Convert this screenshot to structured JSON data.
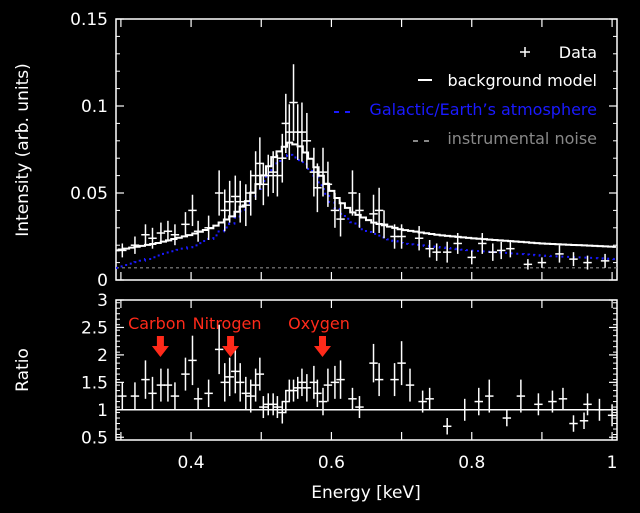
{
  "chart_data": [
    {
      "type": "scatter",
      "panel": "top",
      "ylabel": "Intensity (arb. units)",
      "xlim": [
        0.293,
        1.007
      ],
      "ylim": [
        0,
        0.15
      ],
      "yticks": [
        0,
        0.05,
        0.1,
        0.15
      ],
      "ytick_labels": [
        "0",
        "0.05",
        "0.1",
        "0.15"
      ],
      "legend": {
        "placement": "top-right",
        "entries": [
          {
            "marker": "+",
            "label": "Data",
            "color": "#ffffff"
          },
          {
            "marker": "—",
            "label": "background model",
            "color": "#ffffff"
          },
          {
            "marker": "- -",
            "label": "Galactic/Earth’s atmosphere",
            "color": "#1a1aff"
          },
          {
            "marker": "- -",
            "label": "instrumental noise",
            "color": "#888888"
          }
        ]
      },
      "x_halfwidth": 0.006,
      "points": [
        [
          0.302,
          0.017,
          0.004
        ],
        [
          0.32,
          0.02,
          0.005
        ],
        [
          0.335,
          0.026,
          0.006
        ],
        [
          0.345,
          0.024,
          0.006
        ],
        [
          0.357,
          0.027,
          0.006
        ],
        [
          0.367,
          0.028,
          0.006
        ],
        [
          0.377,
          0.026,
          0.006
        ],
        [
          0.392,
          0.032,
          0.007
        ],
        [
          0.402,
          0.04,
          0.009
        ],
        [
          0.41,
          0.028,
          0.006
        ],
        [
          0.425,
          0.03,
          0.007
        ],
        [
          0.44,
          0.05,
          0.013
        ],
        [
          0.448,
          0.04,
          0.012
        ],
        [
          0.455,
          0.045,
          0.012
        ],
        [
          0.463,
          0.048,
          0.012
        ],
        [
          0.47,
          0.045,
          0.012
        ],
        [
          0.478,
          0.043,
          0.012
        ],
        [
          0.485,
          0.05,
          0.013
        ],
        [
          0.492,
          0.06,
          0.014
        ],
        [
          0.498,
          0.067,
          0.015
        ],
        [
          0.503,
          0.055,
          0.012
        ],
        [
          0.51,
          0.06,
          0.012
        ],
        [
          0.517,
          0.062,
          0.012
        ],
        [
          0.523,
          0.06,
          0.012
        ],
        [
          0.53,
          0.07,
          0.014
        ],
        [
          0.535,
          0.09,
          0.017
        ],
        [
          0.54,
          0.085,
          0.016
        ],
        [
          0.546,
          0.102,
          0.022
        ],
        [
          0.552,
          0.085,
          0.016
        ],
        [
          0.558,
          0.085,
          0.017
        ],
        [
          0.565,
          0.08,
          0.016
        ],
        [
          0.575,
          0.062,
          0.014
        ],
        [
          0.58,
          0.053,
          0.014
        ],
        [
          0.588,
          0.062,
          0.014
        ],
        [
          0.595,
          0.055,
          0.013
        ],
        [
          0.605,
          0.04,
          0.01
        ],
        [
          0.613,
          0.035,
          0.01
        ],
        [
          0.63,
          0.05,
          0.013
        ],
        [
          0.64,
          0.04,
          0.01
        ],
        [
          0.66,
          0.038,
          0.011
        ],
        [
          0.668,
          0.04,
          0.013
        ],
        [
          0.675,
          0.032,
          0.008
        ],
        [
          0.69,
          0.025,
          0.007
        ],
        [
          0.7,
          0.025,
          0.007
        ],
        [
          0.725,
          0.024,
          0.007
        ],
        [
          0.74,
          0.018,
          0.005
        ],
        [
          0.75,
          0.016,
          0.005
        ],
        [
          0.765,
          0.016,
          0.006
        ],
        [
          0.78,
          0.021,
          0.006
        ],
        [
          0.8,
          0.013,
          0.004
        ],
        [
          0.815,
          0.021,
          0.006
        ],
        [
          0.83,
          0.016,
          0.005
        ],
        [
          0.842,
          0.017,
          0.005
        ],
        [
          0.855,
          0.018,
          0.005
        ],
        [
          0.88,
          0.009,
          0.003
        ],
        [
          0.9,
          0.01,
          0.003
        ],
        [
          0.925,
          0.015,
          0.005
        ],
        [
          0.945,
          0.012,
          0.004
        ],
        [
          0.965,
          0.01,
          0.004
        ],
        [
          0.99,
          0.011,
          0.004
        ]
      ],
      "background_model": [
        [
          0.293,
          0.017
        ],
        [
          0.35,
          0.021
        ],
        [
          0.4,
          0.026
        ],
        [
          0.43,
          0.03
        ],
        [
          0.46,
          0.037
        ],
        [
          0.48,
          0.045
        ],
        [
          0.5,
          0.058
        ],
        [
          0.52,
          0.072
        ],
        [
          0.54,
          0.079
        ],
        [
          0.555,
          0.077
        ],
        [
          0.57,
          0.07
        ],
        [
          0.59,
          0.057
        ],
        [
          0.61,
          0.046
        ],
        [
          0.63,
          0.039
        ],
        [
          0.66,
          0.033
        ],
        [
          0.7,
          0.029
        ],
        [
          0.75,
          0.026
        ],
        [
          0.8,
          0.024
        ],
        [
          0.9,
          0.021
        ],
        [
          1.007,
          0.019
        ]
      ],
      "galactic_model": [
        [
          0.293,
          0.007
        ],
        [
          0.33,
          0.011
        ],
        [
          0.36,
          0.015
        ],
        [
          0.4,
          0.019
        ],
        [
          0.43,
          0.024
        ],
        [
          0.46,
          0.033
        ],
        [
          0.48,
          0.043
        ],
        [
          0.5,
          0.055
        ],
        [
          0.52,
          0.067
        ],
        [
          0.54,
          0.072
        ],
        [
          0.56,
          0.068
        ],
        [
          0.58,
          0.058
        ],
        [
          0.6,
          0.045
        ],
        [
          0.62,
          0.036
        ],
        [
          0.65,
          0.028
        ],
        [
          0.7,
          0.021
        ],
        [
          0.75,
          0.019
        ],
        [
          0.8,
          0.017
        ],
        [
          0.9,
          0.014
        ],
        [
          1.007,
          0.012
        ]
      ],
      "noise_level": 0.007
    },
    {
      "type": "scatter",
      "panel": "bottom",
      "xlabel": "Energy [keV]",
      "ylabel": "Ratio",
      "xlim": [
        0.293,
        1.007
      ],
      "ylim": [
        0.45,
        3.0
      ],
      "xticks": [
        0.4,
        0.6,
        0.8,
        1.0
      ],
      "xtick_labels": [
        "0.4",
        "0.6",
        "0.8",
        "1"
      ],
      "yticks": [
        0.5,
        1,
        1.5,
        2,
        2.5,
        3
      ],
      "ytick_labels": [
        "0.5",
        "1",
        "1.5",
        "2",
        "2.5",
        "3"
      ],
      "reference_line": 1,
      "annotations": [
        {
          "label": "Carbon",
          "energy": 0.357,
          "color": "#ff2a1a"
        },
        {
          "label": "Nitrogen",
          "energy": 0.457,
          "color": "#ff2a1a"
        },
        {
          "label": "Oxygen",
          "energy": 0.588,
          "color": "#ff2a1a"
        }
      ],
      "x_halfwidth": 0.006,
      "ratios": [
        [
          0.302,
          1.25,
          0.25
        ],
        [
          0.32,
          1.25,
          0.25
        ],
        [
          0.335,
          1.55,
          0.35
        ],
        [
          0.345,
          1.3,
          0.3
        ],
        [
          0.357,
          1.45,
          0.3
        ],
        [
          0.367,
          1.45,
          0.3
        ],
        [
          0.377,
          1.25,
          0.25
        ],
        [
          0.392,
          1.65,
          0.3
        ],
        [
          0.402,
          1.9,
          0.45
        ],
        [
          0.41,
          1.2,
          0.2
        ],
        [
          0.425,
          1.3,
          0.25
        ],
        [
          0.44,
          2.1,
          0.45
        ],
        [
          0.448,
          1.5,
          0.35
        ],
        [
          0.455,
          1.6,
          0.35
        ],
        [
          0.463,
          1.7,
          0.4
        ],
        [
          0.47,
          1.5,
          0.35
        ],
        [
          0.478,
          1.3,
          0.3
        ],
        [
          0.485,
          1.25,
          0.3
        ],
        [
          0.492,
          1.45,
          0.3
        ],
        [
          0.498,
          1.65,
          0.3
        ],
        [
          0.503,
          1.05,
          0.2
        ],
        [
          0.51,
          1.1,
          0.2
        ],
        [
          0.517,
          1.1,
          0.2
        ],
        [
          0.523,
          1.05,
          0.2
        ],
        [
          0.53,
          0.95,
          0.2
        ],
        [
          0.535,
          1.15,
          0.2
        ],
        [
          0.54,
          1.35,
          0.2
        ],
        [
          0.546,
          1.35,
          0.2
        ],
        [
          0.552,
          1.4,
          0.2
        ],
        [
          0.558,
          1.5,
          0.25
        ],
        [
          0.565,
          1.4,
          0.25
        ],
        [
          0.575,
          1.5,
          0.3
        ],
        [
          0.58,
          1.3,
          0.25
        ],
        [
          0.588,
          1.15,
          0.25
        ],
        [
          0.595,
          1.45,
          0.3
        ],
        [
          0.605,
          1.5,
          0.3
        ],
        [
          0.613,
          1.55,
          0.35
        ],
        [
          0.63,
          1.2,
          0.2
        ],
        [
          0.64,
          1.05,
          0.2
        ],
        [
          0.66,
          1.85,
          0.35
        ],
        [
          0.668,
          1.55,
          0.3
        ],
        [
          0.69,
          1.55,
          0.3
        ],
        [
          0.7,
          1.85,
          0.4
        ],
        [
          0.712,
          1.45,
          0.3
        ],
        [
          0.73,
          1.15,
          0.2
        ],
        [
          0.74,
          1.2,
          0.2
        ],
        [
          0.765,
          0.7,
          0.15
        ],
        [
          0.79,
          1.0,
          0.2
        ],
        [
          0.81,
          1.15,
          0.25
        ],
        [
          0.825,
          1.25,
          0.3
        ],
        [
          0.85,
          0.85,
          0.15
        ],
        [
          0.87,
          1.25,
          0.3
        ],
        [
          0.895,
          1.1,
          0.2
        ],
        [
          0.915,
          1.15,
          0.2
        ],
        [
          0.93,
          1.2,
          0.2
        ],
        [
          0.945,
          0.75,
          0.15
        ],
        [
          0.96,
          0.8,
          0.15
        ],
        [
          0.965,
          1.1,
          0.2
        ],
        [
          0.982,
          1.0,
          0.2
        ],
        [
          1.0,
          0.9,
          0.2
        ]
      ]
    }
  ]
}
